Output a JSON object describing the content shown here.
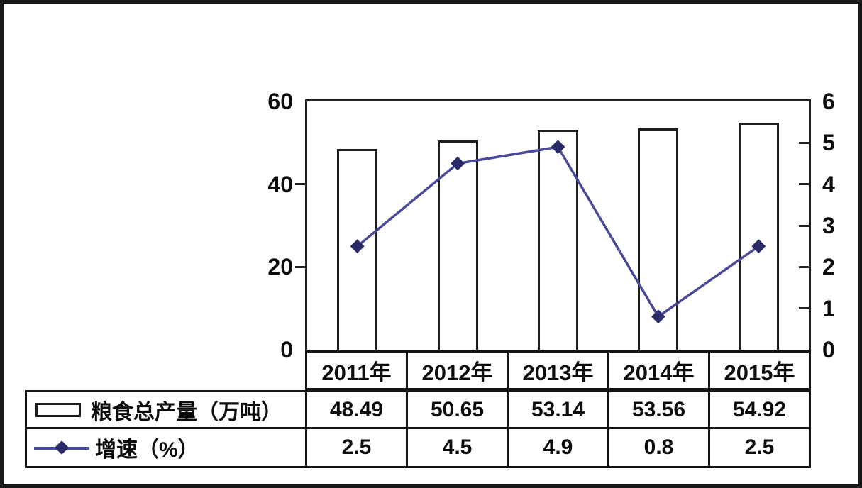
{
  "chart_data": {
    "type": "bar",
    "categories": [
      "2011年",
      "2012年",
      "2013年",
      "2014年",
      "2015年"
    ],
    "series": [
      {
        "name": "粮食总产量（万吨）",
        "type": "bar",
        "axis": "left",
        "values": [
          48.49,
          50.65,
          53.14,
          53.56,
          54.92
        ]
      },
      {
        "name": "增速（%）",
        "type": "line",
        "axis": "right",
        "values": [
          2.5,
          4.5,
          4.9,
          0.8,
          2.5
        ]
      }
    ],
    "title": "",
    "xlabel": "",
    "ylabel_left": "",
    "ylabel_right": "",
    "left_axis": {
      "min": 0,
      "max": 60,
      "ticks": [
        "60",
        "40",
        "20",
        "0"
      ],
      "tick_values": [
        60,
        40,
        20,
        0
      ]
    },
    "right_axis": {
      "min": 0,
      "max": 6,
      "ticks": [
        "6",
        "5",
        "4",
        "3",
        "2",
        "1",
        "0"
      ],
      "tick_values": [
        6,
        5,
        4,
        3,
        2,
        1,
        0
      ]
    },
    "grid": false,
    "legend_position": "table-left",
    "bar_fill": "#ffffff",
    "bar_border": "#1e1e1e",
    "line_color": "#4a4a9b",
    "marker_color": "#2b2b6a",
    "marker_shape": "diamond"
  },
  "table": {
    "header_row": [
      "2011年",
      "2012年",
      "2013年",
      "2014年",
      "2015年"
    ],
    "rows": [
      {
        "label": "粮食总产量（万吨）",
        "swatch": "bar-swatch",
        "values": [
          "48.49",
          "50.65",
          "53.14",
          "53.56",
          "54.92"
        ]
      },
      {
        "label": "增速（%）",
        "swatch": "line-swatch",
        "values": [
          "2.5",
          "4.5",
          "4.9",
          "0.8",
          "2.5"
        ]
      }
    ]
  },
  "colors": {
    "frame_border": "#191919",
    "axis": "#222222",
    "text": "#0d0d0d",
    "background": "#ffffff",
    "line": "#4a4a9b",
    "marker": "#2b2b6a"
  }
}
